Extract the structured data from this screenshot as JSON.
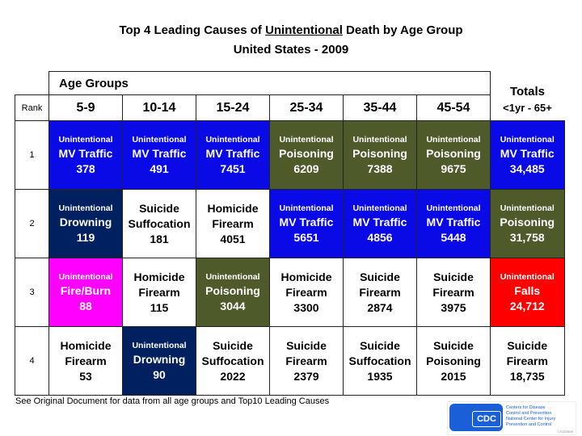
{
  "title": {
    "prefix": "Top 4 Leading Causes of ",
    "underlined": "Unintentional",
    "suffix": " Death by Age Group",
    "subtitle": "United States - 2009"
  },
  "header": {
    "age_groups": "Age Groups",
    "rank": "Rank",
    "totals": "Totals",
    "totals_range": "<1yr - 65+",
    "ages": [
      "5-9",
      "10-14",
      "15-24",
      "25-34",
      "35-44",
      "45-54"
    ]
  },
  "colors": {
    "blue": "#0a0ae6",
    "olive": "#4f5a2a",
    "navy": "#002060",
    "magenta": "#ff00ff",
    "red": "#ff0000",
    "white": "#ffffff"
  },
  "rows": [
    {
      "rank": "1",
      "cells": [
        {
          "type": "Unintentional",
          "cause": "MV Traffic",
          "value": "378",
          "color": "blue"
        },
        {
          "type": "Unintentional",
          "cause": "MV Traffic",
          "value": "491",
          "color": "blue"
        },
        {
          "type": "Unintentional",
          "cause": "MV Traffic",
          "value": "7451",
          "color": "blue"
        },
        {
          "type": "Unintentional",
          "cause": "Poisoning",
          "value": "6209",
          "color": "olive"
        },
        {
          "type": "Unintentional",
          "cause": "Poisoning",
          "value": "7388",
          "color": "olive"
        },
        {
          "type": "Unintentional",
          "cause": "Poisoning",
          "value": "9675",
          "color": "olive"
        },
        {
          "type": "Unintentional",
          "cause": "MV Traffic",
          "value": "34,485",
          "color": "blue"
        }
      ]
    },
    {
      "rank": "2",
      "cells": [
        {
          "type": "Unintentional",
          "cause": "Drowning",
          "value": "119",
          "color": "navy"
        },
        {
          "type": "Suicide",
          "cause": "Suffocation",
          "value": "181",
          "color": "white"
        },
        {
          "type": "Homicide",
          "cause": "Firearm",
          "value": "4051",
          "color": "white"
        },
        {
          "type": "Unintentional",
          "cause": "MV Traffic",
          "value": "5651",
          "color": "blue"
        },
        {
          "type": "Unintentional",
          "cause": "MV Traffic",
          "value": "4856",
          "color": "blue"
        },
        {
          "type": "Unintentional",
          "cause": "MV Traffic",
          "value": "5448",
          "color": "blue"
        },
        {
          "type": "Unintentional",
          "cause": "Poisoning",
          "value": "31,758",
          "color": "olive"
        }
      ]
    },
    {
      "rank": "3",
      "cells": [
        {
          "type": "Unintentional",
          "cause": "Fire/Burn",
          "value": "88",
          "color": "magenta"
        },
        {
          "type": "Homicide",
          "cause": "Firearm",
          "value": "115",
          "color": "white"
        },
        {
          "type": "Unintentional",
          "cause": "Poisoning",
          "value": "3044",
          "color": "olive"
        },
        {
          "type": "Homicide",
          "cause": "Firearm",
          "value": "3300",
          "color": "white"
        },
        {
          "type": "Suicide",
          "cause": "Firearm",
          "value": "2874",
          "color": "white"
        },
        {
          "type": "Suicide",
          "cause": "Firearm",
          "value": "3975",
          "color": "white"
        },
        {
          "type": "Unintentional",
          "cause": "Falls",
          "value": "24,712",
          "color": "red"
        }
      ]
    },
    {
      "rank": "4",
      "cells": [
        {
          "type": "Homicide",
          "cause": "Firearm",
          "value": "53",
          "color": "white"
        },
        {
          "type": "Unintentional",
          "cause": "Drowning",
          "value": "90",
          "color": "navy"
        },
        {
          "type": "Suicide",
          "cause": "Suffocation",
          "value": "2022",
          "color": "white"
        },
        {
          "type": "Suicide",
          "cause": "Firearm",
          "value": "2379",
          "color": "white"
        },
        {
          "type": "Suicide",
          "cause": "Suffocation",
          "value": "1935",
          "color": "white"
        },
        {
          "type": "Suicide",
          "cause": "Poisoning",
          "value": "2015",
          "color": "white"
        },
        {
          "type": "Suicide",
          "cause": "Firearm",
          "value": "18,735",
          "color": "white"
        }
      ]
    }
  ],
  "footer": "See Original Document for data from all age groups and  Top10 Leading Causes",
  "logo": {
    "mark": "CDC",
    "lines": [
      "Centers for Disease",
      "Control and Prevention",
      "National Center for Injury",
      "Prevention and Control"
    ],
    "code": "CS220609"
  }
}
